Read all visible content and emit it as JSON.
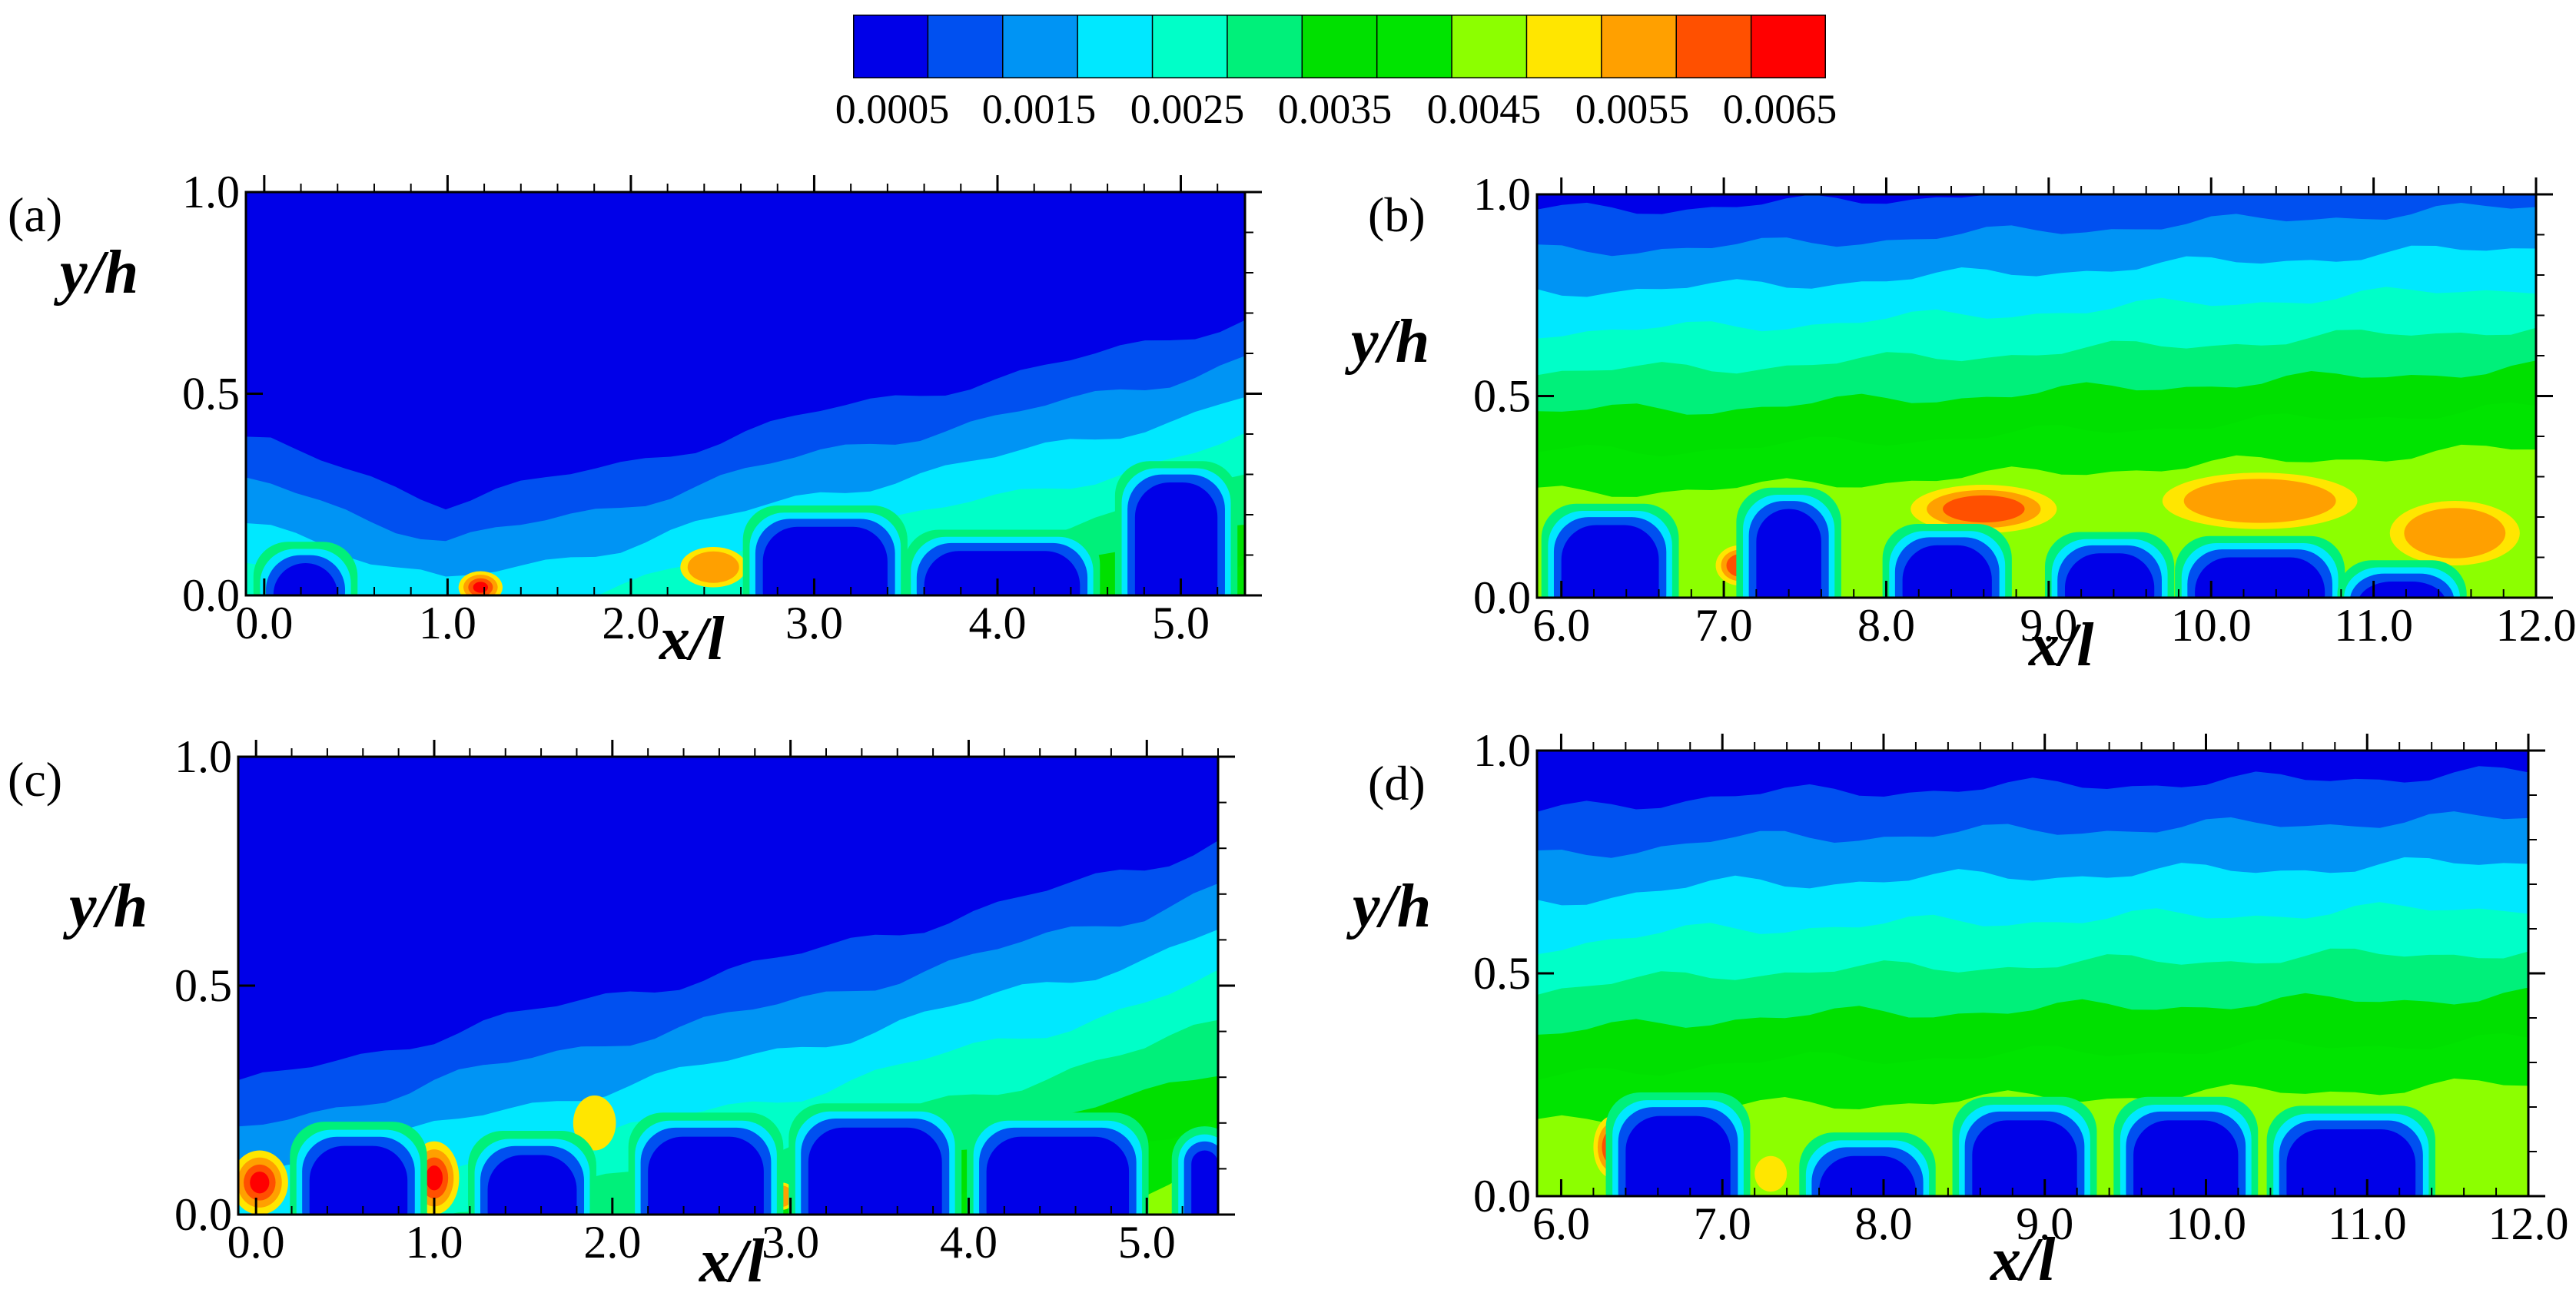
{
  "colors": {
    "levels": [
      "#0000e8",
      "#0050f0",
      "#0094f4",
      "#00e8ff",
      "#00ffc8",
      "#00f07a",
      "#00e000",
      "#00e400",
      "#8cff00",
      "#ffe600",
      "#ffa000",
      "#ff5000",
      "#ff0000"
    ],
    "background": "#ffffff"
  },
  "colorbar": {
    "ticks": [
      "0.0005",
      "0.0015",
      "0.0025",
      "0.0035",
      "0.0045",
      "0.0055",
      "0.0065"
    ]
  },
  "chart_data": [
    {
      "type": "heatmap",
      "id": "a",
      "label": "(a)",
      "xlabel": "x/l",
      "ylabel": "y/h",
      "xlim": [
        -0.1,
        5.35
      ],
      "ylim": [
        0.0,
        1.0
      ],
      "xticks": [
        "0.0",
        "1.0",
        "2.0",
        "3.0",
        "4.0",
        "5.0"
      ],
      "xtick_values": [
        0,
        1,
        2,
        3,
        4,
        5
      ],
      "yticks": [
        "0.0",
        "0.5",
        "1.0"
      ],
      "ytick_values": [
        0,
        0.5,
        1.0
      ],
      "front": {
        "x": [
          -0.1,
          0.0,
          1.0,
          2.0,
          3.0,
          4.0,
          5.0,
          5.35
        ],
        "y": [
          0.38,
          0.38,
          0.23,
          0.33,
          0.45,
          0.54,
          0.64,
          0.69
        ]
      },
      "low_blocks": [
        [
          2.72,
          3.4,
          0.17
        ],
        [
          3.6,
          4.45,
          0.11
        ],
        [
          4.75,
          5.2,
          0.28
        ],
        [
          0.05,
          0.4,
          0.08
        ]
      ],
      "hot_spots": [
        [
          1.18,
          0.02,
          0.12,
          0.04,
          12
        ],
        [
          2.45,
          0.07,
          0.18,
          0.05,
          10
        ],
        [
          2.28,
          0.12,
          0.15,
          0.05,
          8
        ],
        [
          4.55,
          0.18,
          0.1,
          0.06,
          8
        ]
      ]
    },
    {
      "type": "heatmap",
      "id": "b",
      "label": "(b)",
      "xlabel": "x/l",
      "ylabel": "y/h",
      "xlim": [
        5.85,
        12.0
      ],
      "ylim": [
        0.0,
        1.0
      ],
      "xticks": [
        "6.0",
        "7.0",
        "8.0",
        "9.0",
        "10.0",
        "11.0",
        "12.0"
      ],
      "xtick_values": [
        6,
        7,
        8,
        9,
        10,
        11,
        12
      ],
      "yticks": [
        "0.0",
        "0.5",
        "1.0"
      ],
      "ytick_values": [
        0,
        0.5,
        1.0
      ],
      "front": {
        "x": [
          5.85,
          7.0,
          8.0,
          9.0,
          10.0,
          11.0,
          12.0
        ],
        "y": [
          0.96,
          0.97,
          0.99,
          1.01,
          1.03,
          1.05,
          1.07
        ]
      },
      "low_blocks": [
        [
          6.0,
          6.6,
          0.18
        ],
        [
          7.2,
          7.6,
          0.22
        ],
        [
          8.1,
          8.65,
          0.13
        ],
        [
          9.1,
          9.65,
          0.11
        ],
        [
          9.9,
          10.7,
          0.1
        ],
        [
          10.9,
          11.45,
          0.04
        ]
      ],
      "hot_spots": [
        [
          8.6,
          0.22,
          0.45,
          0.06,
          11
        ],
        [
          7.1,
          0.08,
          0.15,
          0.05,
          11
        ],
        [
          8.4,
          0.12,
          0.2,
          0.04,
          12
        ],
        [
          10.3,
          0.24,
          0.6,
          0.07,
          10
        ],
        [
          11.5,
          0.16,
          0.4,
          0.08,
          10
        ]
      ]
    },
    {
      "type": "heatmap",
      "id": "c",
      "label": "(c)",
      "xlabel": "x/l",
      "ylabel": "y/h",
      "xlim": [
        -0.1,
        5.4
      ],
      "ylim": [
        0.0,
        1.0
      ],
      "xticks": [
        "0.0",
        "1.0",
        "2.0",
        "3.0",
        "4.0",
        "5.0"
      ],
      "xtick_values": [
        0,
        1,
        2,
        3,
        4,
        5
      ],
      "yticks": [
        "0.0",
        "0.5",
        "1.0"
      ],
      "ytick_values": [
        0,
        0.5,
        1.0
      ],
      "front": {
        "x": [
          -0.1,
          1.0,
          2.0,
          3.0,
          4.0,
          5.0,
          5.4
        ],
        "y": [
          0.28,
          0.39,
          0.48,
          0.56,
          0.66,
          0.76,
          0.82
        ]
      },
      "low_blocks": [
        [
          0.3,
          0.85,
          0.15
        ],
        [
          1.3,
          1.8,
          0.13
        ],
        [
          2.2,
          2.85,
          0.17
        ],
        [
          3.1,
          3.85,
          0.19
        ],
        [
          4.1,
          4.9,
          0.17
        ],
        [
          5.25,
          5.4,
          0.14
        ]
      ],
      "hot_spots": [
        [
          0.02,
          0.07,
          0.16,
          0.07,
          12
        ],
        [
          1.0,
          0.08,
          0.14,
          0.08,
          12
        ],
        [
          2.95,
          0.04,
          0.08,
          0.03,
          10
        ],
        [
          1.9,
          0.2,
          0.12,
          0.06,
          9
        ]
      ]
    },
    {
      "type": "heatmap",
      "id": "d",
      "label": "(d)",
      "xlabel": "x/l",
      "ylabel": "y/h",
      "xlim": [
        5.85,
        12.0
      ],
      "ylim": [
        0.0,
        1.0
      ],
      "xticks": [
        "6.0",
        "7.0",
        "8.0",
        "9.0",
        "10.0",
        "11.0",
        "12.0"
      ],
      "xtick_values": [
        6,
        7,
        8,
        9,
        10,
        11,
        12
      ],
      "yticks": [
        "0.0",
        "0.5",
        "1.0"
      ],
      "ytick_values": [
        0,
        0.5,
        1.0
      ],
      "front": {
        "x": [
          5.85,
          7.0,
          8.0,
          9.0,
          10.0,
          11.0,
          12.0
        ],
        "y": [
          0.86,
          0.9,
          0.91,
          0.92,
          0.93,
          0.94,
          0.95
        ]
      },
      "low_blocks": [
        [
          6.4,
          7.05,
          0.18
        ],
        [
          7.6,
          8.2,
          0.09
        ],
        [
          8.55,
          9.2,
          0.17
        ],
        [
          9.55,
          10.2,
          0.17
        ],
        [
          10.5,
          11.3,
          0.15
        ]
      ],
      "hot_spots": [
        [
          6.32,
          0.11,
          0.12,
          0.07,
          12
        ],
        [
          7.3,
          0.05,
          0.1,
          0.04,
          9
        ],
        [
          6.05,
          0.1,
          0.08,
          0.05,
          8
        ]
      ]
    }
  ]
}
